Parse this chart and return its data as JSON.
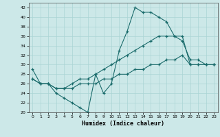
{
  "xlabel": "Humidex (Indice chaleur)",
  "xlim": [
    -0.5,
    23.5
  ],
  "ylim": [
    20,
    43
  ],
  "xticks": [
    0,
    1,
    2,
    3,
    4,
    5,
    6,
    7,
    8,
    9,
    10,
    11,
    12,
    13,
    14,
    15,
    16,
    17,
    18,
    19,
    20,
    21,
    22,
    23
  ],
  "yticks": [
    20,
    22,
    24,
    26,
    28,
    30,
    32,
    34,
    36,
    38,
    40,
    42
  ],
  "bg_color": "#cce8e8",
  "grid_color": "#aad4d4",
  "line_color": "#1a6b6b",
  "line1_x": [
    0,
    1,
    2,
    3,
    4,
    5,
    6,
    7,
    8,
    9,
    10,
    11,
    12,
    13,
    14,
    15,
    16,
    17,
    18,
    19,
    20,
    21,
    22,
    23
  ],
  "line1_y": [
    29,
    26,
    26,
    24,
    23,
    22,
    21,
    20,
    28,
    24,
    26,
    33,
    37,
    42,
    41,
    41,
    40,
    39,
    36,
    35,
    31,
    31,
    30,
    30
  ],
  "line2_x": [
    0,
    1,
    2,
    3,
    4,
    5,
    6,
    7,
    8,
    9,
    10,
    11,
    12,
    13,
    14,
    15,
    16,
    17,
    18,
    19,
    20,
    21,
    22,
    23
  ],
  "line2_y": [
    27,
    26,
    26,
    25,
    25,
    26,
    27,
    27,
    28,
    29,
    30,
    31,
    32,
    33,
    34,
    35,
    36,
    36,
    36,
    36,
    30,
    30,
    30,
    30
  ],
  "line3_x": [
    0,
    1,
    2,
    3,
    4,
    5,
    6,
    7,
    8,
    9,
    10,
    11,
    12,
    13,
    14,
    15,
    16,
    17,
    18,
    19,
    20,
    21,
    22,
    23
  ],
  "line3_y": [
    27,
    26,
    26,
    25,
    25,
    25,
    26,
    26,
    26,
    27,
    27,
    28,
    28,
    29,
    29,
    30,
    30,
    31,
    31,
    32,
    30,
    30,
    30,
    30
  ]
}
